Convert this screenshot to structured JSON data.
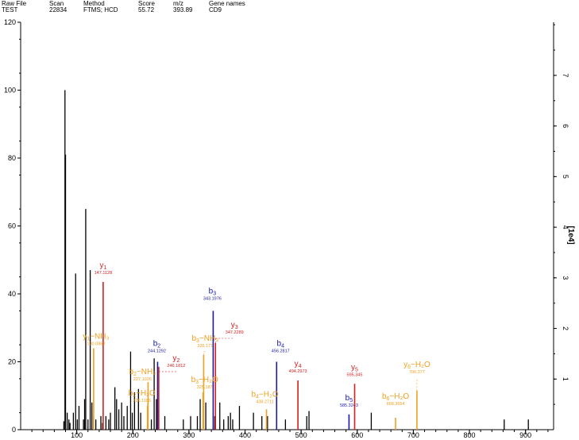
{
  "header": {
    "columns": [
      {
        "label": "Raw File",
        "value": "TEST"
      },
      {
        "label": "Scan",
        "value": "22834"
      },
      {
        "label": "Method",
        "value": "FTMS; HCD"
      },
      {
        "label": "Score",
        "value": "55.72"
      },
      {
        "label": "m/z",
        "value": "393.89"
      },
      {
        "label": "Gene names",
        "value": "CD9"
      }
    ]
  },
  "colors": {
    "unassigned": "#000000",
    "b_ion": "#1a1aa8",
    "y_ion": "#d42020",
    "neutral_loss": "#f0a020"
  },
  "chart_data": {
    "type": "bar",
    "xlim": [
      0,
      950
    ],
    "ylim": [
      0,
      120
    ],
    "x_ticks": [
      100,
      200,
      300,
      400,
      500,
      600,
      700,
      800,
      900
    ],
    "y_ticks": [
      0,
      20,
      40,
      60,
      80,
      100,
      120
    ],
    "y2_label": "[1e4]",
    "y2_ticks": [
      1,
      2,
      3,
      4,
      5,
      6,
      7
    ],
    "y2_max": 8.05,
    "grid": false,
    "peaks": [
      {
        "x": 77,
        "y": 2.5
      },
      {
        "x": 79,
        "y": 100
      },
      {
        "x": 80,
        "y": 81
      },
      {
        "x": 83,
        "y": 5
      },
      {
        "x": 86,
        "y": 3
      },
      {
        "x": 88,
        "y": 2
      },
      {
        "x": 94,
        "y": 5
      },
      {
        "x": 98,
        "y": 46
      },
      {
        "x": 101,
        "y": 3
      },
      {
        "x": 104,
        "y": 7
      },
      {
        "x": 112,
        "y": 3
      },
      {
        "x": 114,
        "y": 9
      },
      {
        "x": 116,
        "y": 65
      },
      {
        "x": 120,
        "y": 3
      },
      {
        "x": 124,
        "y": 47
      },
      {
        "x": 127,
        "y": 8
      },
      {
        "x": 130,
        "y": 4
      },
      {
        "x": 134,
        "y": 3
      },
      {
        "x": 143,
        "y": 4
      },
      {
        "x": 146,
        "y": 2
      },
      {
        "x": 152,
        "y": 4
      },
      {
        "x": 157,
        "y": 3
      },
      {
        "x": 160,
        "y": 5
      },
      {
        "x": 168,
        "y": 12.5
      },
      {
        "x": 171,
        "y": 9
      },
      {
        "x": 175,
        "y": 6
      },
      {
        "x": 180,
        "y": 8
      },
      {
        "x": 184,
        "y": 4
      },
      {
        "x": 190,
        "y": 7
      },
      {
        "x": 196,
        "y": 23
      },
      {
        "x": 199,
        "y": 5
      },
      {
        "x": 203,
        "y": 11
      },
      {
        "x": 210,
        "y": 12
      },
      {
        "x": 214,
        "y": 5
      },
      {
        "x": 227,
        "y": 8
      },
      {
        "x": 233,
        "y": 3
      },
      {
        "x": 238,
        "y": 21
      },
      {
        "x": 242,
        "y": 9
      },
      {
        "x": 245,
        "y": 6
      },
      {
        "x": 257,
        "y": 4
      },
      {
        "x": 290,
        "y": 3
      },
      {
        "x": 303,
        "y": 4
      },
      {
        "x": 315,
        "y": 4
      },
      {
        "x": 320,
        "y": 9
      },
      {
        "x": 330,
        "y": 8
      },
      {
        "x": 346,
        "y": 4
      },
      {
        "x": 355,
        "y": 8
      },
      {
        "x": 362,
        "y": 3
      },
      {
        "x": 370,
        "y": 4
      },
      {
        "x": 374,
        "y": 5
      },
      {
        "x": 378,
        "y": 3
      },
      {
        "x": 390,
        "y": 7
      },
      {
        "x": 415,
        "y": 5
      },
      {
        "x": 430,
        "y": 4
      },
      {
        "x": 440,
        "y": 4
      },
      {
        "x": 472,
        "y": 3
      },
      {
        "x": 510,
        "y": 4
      },
      {
        "x": 514,
        "y": 5.5
      },
      {
        "x": 625,
        "y": 5
      },
      {
        "x": 862,
        "y": 3
      },
      {
        "x": 905,
        "y": 3
      }
    ],
    "annotated_peaks": [
      {
        "ion": "y",
        "sub": "1",
        "suffix": "",
        "mz_label": "147.1128",
        "x": 147.11,
        "y": 43.5,
        "kind": "y_ion"
      },
      {
        "ion": "y",
        "sub": "1",
        "suffix": "−NH₃",
        "mz_label": "130.0863",
        "x": 130.09,
        "y": 24,
        "kind": "neutral_loss"
      },
      {
        "ion": "b",
        "sub": "2",
        "suffix": "",
        "mz_label": "244.1292",
        "x": 244.13,
        "y": 20,
        "kind": "b_ion"
      },
      {
        "ion": "y",
        "sub": "2",
        "suffix": "",
        "mz_label": "246.1812",
        "x": 246.18,
        "y": 18.5,
        "kind": "y_ion"
      },
      {
        "ion": "b",
        "sub": "2",
        "suffix": "−NH₃",
        "mz_label": "227.1026",
        "x": 227.1,
        "y": 14,
        "kind": "neutral_loss"
      },
      {
        "ion": "b",
        "sub": "2",
        "suffix": "−H₂O",
        "mz_label": "226.1186",
        "x": 226.12,
        "y": 7,
        "kind": "neutral_loss"
      },
      {
        "ion": "b",
        "sub": "3",
        "suffix": "",
        "mz_label": "343.1976",
        "x": 343.2,
        "y": 35,
        "kind": "b_ion"
      },
      {
        "ion": "y",
        "sub": "3",
        "suffix": "",
        "mz_label": "347.2289",
        "x": 347.23,
        "y": 25.5,
        "kind": "y_ion"
      },
      {
        "ion": "b",
        "sub": "3",
        "suffix": "−NH₃",
        "mz_label": "326.171",
        "x": 326.17,
        "y": 22,
        "kind": "neutral_loss"
      },
      {
        "ion": "b",
        "sub": "3",
        "suffix": "−H₂O",
        "mz_label": "325.187",
        "x": 325.19,
        "y": 11,
        "kind": "neutral_loss"
      },
      {
        "ion": "b",
        "sub": "4",
        "suffix": "",
        "mz_label": "456.2817",
        "x": 456.28,
        "y": 20,
        "kind": "b_ion"
      },
      {
        "ion": "y",
        "sub": "4",
        "suffix": "",
        "mz_label": "494.2973",
        "x": 494.3,
        "y": 14.5,
        "kind": "y_ion"
      },
      {
        "ion": "b",
        "sub": "4",
        "suffix": "−H₂O",
        "mz_label": "438.2711",
        "x": 438.27,
        "y": 6,
        "kind": "neutral_loss"
      },
      {
        "ion": "b",
        "sub": "5",
        "suffix": "",
        "mz_label": "585.3243",
        "x": 585.32,
        "y": 4.5,
        "kind": "b_ion"
      },
      {
        "ion": "y",
        "sub": "5",
        "suffix": "",
        "mz_label": "595.345",
        "x": 595.35,
        "y": 13.5,
        "kind": "y_ion"
      },
      {
        "ion": "b",
        "sub": "6",
        "suffix": "−H₂O",
        "mz_label": "668.3654",
        "x": 668.37,
        "y": 3.5,
        "kind": "neutral_loss"
      },
      {
        "ion": "y",
        "sub": "6",
        "suffix": "−H₂O",
        "mz_label": "706.377",
        "x": 706.38,
        "y": 11.5,
        "kind": "neutral_loss"
      }
    ]
  }
}
